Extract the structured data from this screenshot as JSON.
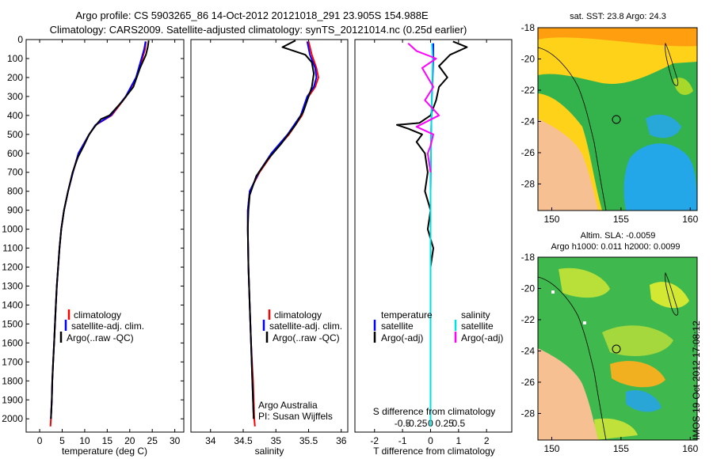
{
  "header": {
    "line1": "Argo profile: CS 5903265_86 14-Oct-2012 20121018_291 23.905S 154.988E",
    "line2": "Climatology: CARS2009. Satellite-adjusted climatology: synTS_20121014.nc (0.25d earlier)"
  },
  "colors": {
    "climatology": "#ff0000",
    "satellite": "#0000ff",
    "argo": "#000000",
    "sal_satellite": "#00e0e0",
    "sal_argo": "#ff00ff"
  },
  "credits": {
    "org": "Argo Australia",
    "pi": "PI: Susan Wijffels"
  },
  "side_label": "IMOS 19-Oct-2012 17:08:12",
  "chart_data": [
    {
      "type": "line",
      "xlabel": "temperature (deg C)",
      "ylabel": "",
      "xlim": [
        -3,
        32
      ],
      "ylim": [
        2070,
        0
      ],
      "xticks": [
        0,
        5,
        10,
        15,
        20,
        25,
        30
      ],
      "yticks": [
        0,
        100,
        200,
        300,
        400,
        500,
        600,
        700,
        800,
        900,
        1000,
        1100,
        1200,
        1300,
        1400,
        1500,
        1600,
        1700,
        1800,
        1900,
        2000
      ],
      "legend": [
        "climatology",
        "satellite-adj. clim.",
        "Argo(..raw -QC)"
      ],
      "series": [
        {
          "name": "climatology",
          "color_key": "climatology",
          "points": [
            [
              23.6,
              10
            ],
            [
              23.4,
              50
            ],
            [
              22.8,
              100
            ],
            [
              21.5,
              200
            ],
            [
              19.2,
              300
            ],
            [
              16,
              400
            ],
            [
              12.5,
              450
            ],
            [
              11,
              500
            ],
            [
              9.8,
              550
            ],
            [
              8.6,
              600
            ],
            [
              7.4,
              700
            ],
            [
              6.3,
              800
            ],
            [
              5.4,
              900
            ],
            [
              4.8,
              1000
            ],
            [
              4.4,
              1100
            ],
            [
              4.1,
              1200
            ],
            [
              3.8,
              1300
            ],
            [
              3.6,
              1400
            ],
            [
              3.4,
              1500
            ],
            [
              3.2,
              1600
            ],
            [
              3.0,
              1700
            ],
            [
              2.8,
              1800
            ],
            [
              2.7,
              1900
            ],
            [
              2.5,
              2000
            ],
            [
              2.4,
              2040
            ]
          ]
        },
        {
          "name": "satellite-adj. clim.",
          "color_key": "satellite",
          "points": [
            [
              23.5,
              10
            ],
            [
              23.2,
              50
            ],
            [
              22.6,
              100
            ],
            [
              21.4,
              200
            ],
            [
              19.1,
              300
            ],
            [
              15.8,
              400
            ],
            [
              12.4,
              450
            ],
            [
              11,
              500
            ],
            [
              9.8,
              550
            ],
            [
              8.6,
              600
            ],
            [
              7.4,
              700
            ],
            [
              6.3,
              800
            ],
            [
              5.4,
              900
            ],
            [
              4.8,
              1000
            ],
            [
              4.4,
              1100
            ],
            [
              4.1,
              1200
            ],
            [
              3.8,
              1300
            ],
            [
              3.6,
              1400
            ],
            [
              3.4,
              1500
            ],
            [
              3.2,
              1600
            ],
            [
              3.0,
              1700
            ],
            [
              2.8,
              1800
            ],
            [
              2.7,
              1900
            ],
            [
              2.5,
              2000
            ]
          ]
        },
        {
          "name": "Argo(..raw -QC)",
          "color_key": "argo",
          "points": [
            [
              24.2,
              5
            ],
            [
              24,
              40
            ],
            [
              23.6,
              80
            ],
            [
              22.3,
              150
            ],
            [
              20.8,
              250
            ],
            [
              18.2,
              330
            ],
            [
              15.5,
              400
            ],
            [
              13.6,
              420
            ],
            [
              12.2,
              460
            ],
            [
              11,
              500
            ],
            [
              9.8,
              560
            ],
            [
              8.5,
              620
            ],
            [
              7.3,
              700
            ],
            [
              6.3,
              800
            ],
            [
              5.4,
              900
            ],
            [
              4.8,
              1000
            ],
            [
              4.4,
              1100
            ],
            [
              4.1,
              1200
            ],
            [
              3.8,
              1300
            ],
            [
              3.6,
              1400
            ],
            [
              3.4,
              1500
            ],
            [
              3.2,
              1600
            ],
            [
              3.0,
              1700
            ],
            [
              2.8,
              1800
            ],
            [
              2.7,
              1900
            ],
            [
              2.5,
              2000
            ]
          ]
        }
      ]
    },
    {
      "type": "line",
      "xlabel": "salinity",
      "ylabel": "",
      "xlim": [
        33.7,
        36.1
      ],
      "ylim": [
        2070,
        0
      ],
      "xticks": [
        34,
        34.5,
        35,
        35.5,
        36
      ],
      "legend": [
        "climatology",
        "satellite-adj. clim.",
        "Argo(..raw -QC)"
      ],
      "series": [
        {
          "name": "climatology",
          "color_key": "climatology",
          "points": [
            [
              35.5,
              10
            ],
            [
              35.55,
              80
            ],
            [
              35.62,
              150
            ],
            [
              35.65,
              200
            ],
            [
              35.6,
              250
            ],
            [
              35.5,
              300
            ],
            [
              35.4,
              400
            ],
            [
              35.2,
              500
            ],
            [
              34.95,
              600
            ],
            [
              34.75,
              700
            ],
            [
              34.6,
              800
            ],
            [
              34.57,
              900
            ],
            [
              34.57,
              1000
            ],
            [
              34.58,
              1200
            ],
            [
              34.6,
              1400
            ],
            [
              34.62,
              1600
            ],
            [
              34.65,
              1800
            ],
            [
              34.67,
              2000
            ],
            [
              34.68,
              2040
            ]
          ]
        },
        {
          "name": "satellite-adj. clim.",
          "color_key": "satellite",
          "points": [
            [
              35.48,
              10
            ],
            [
              35.52,
              80
            ],
            [
              35.6,
              150
            ],
            [
              35.62,
              200
            ],
            [
              35.58,
              250
            ],
            [
              35.48,
              300
            ],
            [
              35.38,
              400
            ],
            [
              35.18,
              500
            ],
            [
              34.93,
              600
            ],
            [
              34.74,
              700
            ],
            [
              34.6,
              800
            ],
            [
              34.57,
              900
            ],
            [
              34.57,
              1000
            ],
            [
              34.58,
              1200
            ],
            [
              34.6,
              1400
            ],
            [
              34.62,
              1600
            ],
            [
              34.64,
              1800
            ],
            [
              34.66,
              2000
            ]
          ]
        },
        {
          "name": "Argo(..raw -QC)",
          "color_key": "argo",
          "points": [
            [
              35.3,
              5
            ],
            [
              35.1,
              40
            ],
            [
              35.45,
              80
            ],
            [
              35.55,
              120
            ],
            [
              35.58,
              180
            ],
            [
              35.55,
              250
            ],
            [
              35.5,
              300
            ],
            [
              35.42,
              380
            ],
            [
              35.3,
              450
            ],
            [
              35.08,
              550
            ],
            [
              34.88,
              630
            ],
            [
              34.7,
              720
            ],
            [
              34.6,
              820
            ],
            [
              34.58,
              900
            ],
            [
              34.57,
              1000
            ],
            [
              34.58,
              1200
            ],
            [
              34.6,
              1400
            ],
            [
              34.62,
              1600
            ],
            [
              34.64,
              1800
            ],
            [
              34.66,
              2000
            ]
          ]
        }
      ]
    },
    {
      "type": "line",
      "xlabel": "T difference from climatology",
      "xlabel2": "S difference from climatology",
      "xlim": [
        -2.7,
        2.9
      ],
      "ylim": [
        2070,
        0
      ],
      "xticks": [
        -2,
        -1,
        0,
        1,
        2
      ],
      "xticks2": [
        "-0.5",
        "-0.25",
        "0",
        "0.25",
        "0.5"
      ],
      "legend_temperature": [
        "temperature",
        "satellite",
        "Argo(-adj)"
      ],
      "legend_salinity": [
        "salinity",
        "satellite",
        "Argo(-adj)"
      ],
      "series": [
        {
          "name": "temperature satellite",
          "color_key": "satellite",
          "points": [
            [
              0.1,
              20
            ],
            [
              0.1,
              100
            ],
            [
              0.05,
              300
            ],
            [
              0.02,
              500
            ],
            [
              0,
              800
            ],
            [
              0,
              1200
            ],
            [
              0,
              1600
            ],
            [
              0,
              2000
            ]
          ]
        },
        {
          "name": "temperature Argo(-adj)",
          "color_key": "argo",
          "points": [
            [
              0.8,
              10
            ],
            [
              1.3,
              40
            ],
            [
              0.7,
              80
            ],
            [
              0.3,
              140
            ],
            [
              0.6,
              200
            ],
            [
              0.3,
              250
            ],
            [
              0.2,
              320
            ],
            [
              0.0,
              400
            ],
            [
              -0.4,
              440
            ],
            [
              -1.2,
              450
            ],
            [
              -0.8,
              470
            ],
            [
              -0.3,
              500
            ],
            [
              -0.5,
              540
            ],
            [
              -0.2,
              600
            ],
            [
              -0.1,
              700
            ],
            [
              -0.2,
              800
            ],
            [
              0,
              900
            ],
            [
              -0.1,
              1000
            ],
            [
              0.1,
              1100
            ],
            [
              0,
              1200
            ],
            [
              0,
              1300
            ],
            [
              0,
              1500
            ],
            [
              0,
              1700
            ],
            [
              0,
              2000
            ]
          ]
        },
        {
          "name": "salinity satellite",
          "color_key": "sal_satellite",
          "points": [
            [
              0.05,
              20
            ],
            [
              0.08,
              100
            ],
            [
              0.05,
              300
            ],
            [
              0.02,
              500
            ],
            [
              0,
              800
            ],
            [
              0,
              1200
            ],
            [
              0,
              1600
            ],
            [
              0,
              2040
            ]
          ]
        },
        {
          "name": "salinity Argo(-adj)",
          "color_key": "sal_argo",
          "points": [
            [
              -0.8,
              20
            ],
            [
              -0.5,
              60
            ],
            [
              0.2,
              100
            ],
            [
              -0.3,
              150
            ],
            [
              0.1,
              250
            ],
            [
              -0.2,
              320
            ],
            [
              0.3,
              400
            ],
            [
              -0.5,
              460
            ],
            [
              0.1,
              500
            ],
            [
              0.0,
              560
            ],
            [
              -0.1,
              600
            ],
            [
              0.0,
              700
            ]
          ]
        }
      ]
    },
    {
      "type": "heatmap",
      "title": "sat. SST: 23.8 Argo: 24.3",
      "xlim": [
        149,
        160.5
      ],
      "ylim": [
        -29.7,
        -18
      ],
      "xticks": [
        150,
        155,
        160
      ],
      "yticks": [
        -18,
        -20,
        -22,
        -24,
        -26,
        -28
      ]
    },
    {
      "type": "heatmap",
      "title": "Altim. SLA: -0.0059",
      "subtitle": "Argo h1000: 0.011 h2000: 0.0099",
      "xlim": [
        149,
        160.5
      ],
      "ylim": [
        -29.7,
        -18
      ],
      "xticks": [
        150,
        155,
        160
      ],
      "yticks": [
        -18,
        -20,
        -22,
        -24,
        -26,
        -28
      ]
    }
  ]
}
